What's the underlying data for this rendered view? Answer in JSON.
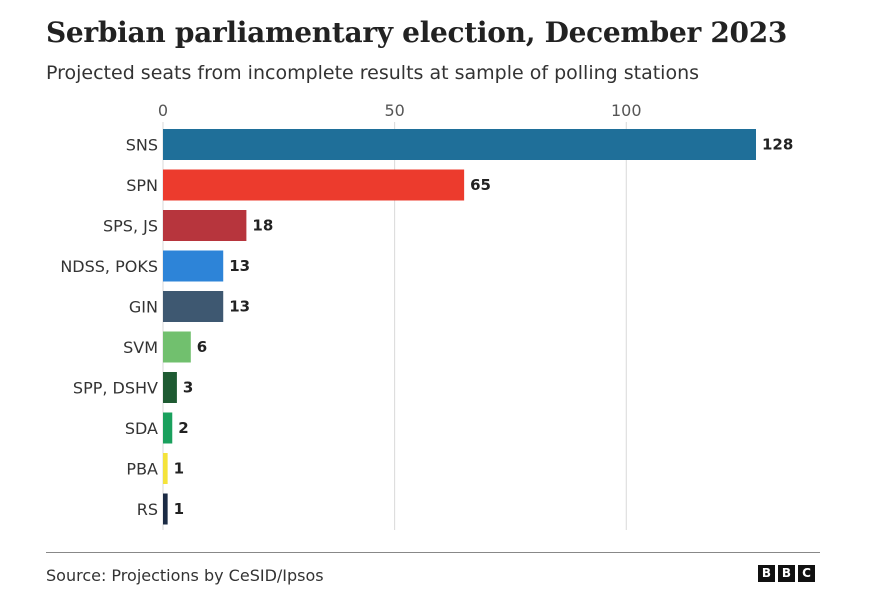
{
  "header": {
    "title": "Serbian parliamentary election, December 2023",
    "subtitle": "Projected seats from incomplete results at sample of polling stations"
  },
  "footer": {
    "source": "Source: Projections by CeSID/Ipsos",
    "logo_letters": [
      "B",
      "B",
      "C"
    ]
  },
  "chart_data": {
    "type": "bar",
    "orientation": "horizontal",
    "title": "Serbian parliamentary election, December 2023",
    "subtitle": "Projected seats from incomplete results at sample of polling stations",
    "xlabel": "",
    "ylabel": "",
    "xlim": [
      0,
      128
    ],
    "xticks": [
      0,
      50,
      100
    ],
    "grid": true,
    "categories": [
      "SNS",
      "SPN",
      "SPS, JS",
      "NDSS, POKS",
      "GIN",
      "SVM",
      "SPP, DSHV",
      "SDA",
      "PBA",
      "RS"
    ],
    "values": [
      128,
      65,
      18,
      13,
      13,
      6,
      3,
      2,
      1,
      1
    ],
    "colors": [
      "#1f6f99",
      "#ec3b2d",
      "#b7353d",
      "#2d84d8",
      "#3e5871",
      "#71c06e",
      "#1e5a32",
      "#1aa05d",
      "#f4e33b",
      "#1b2b44"
    ]
  }
}
